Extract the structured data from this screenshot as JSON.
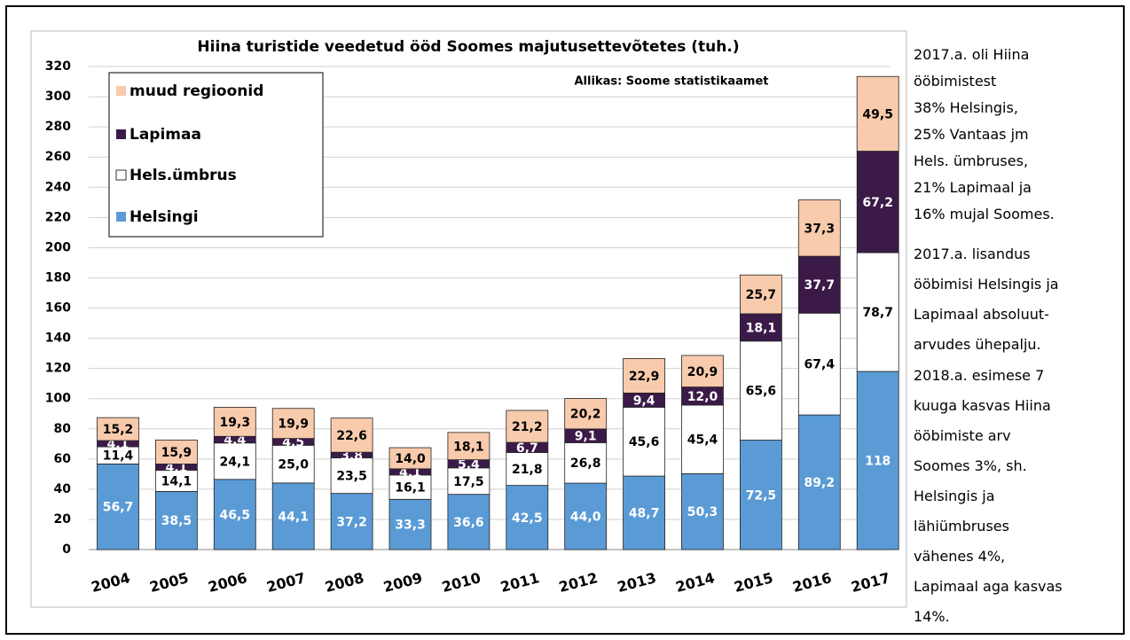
{
  "chart_data": {
    "type": "bar",
    "stacked": true,
    "title": "Hiina turistide veedetud ööd Soomes majutusettevõtetes (tuh.)",
    "annotation": "Allikas: Soome statistikaamet",
    "categories": [
      "2004",
      "2005",
      "2006",
      "2007",
      "2008",
      "2009",
      "2010",
      "2011",
      "2012",
      "2013",
      "2014",
      "2015",
      "2016",
      "2017"
    ],
    "series": [
      {
        "name": "Helsingi",
        "color": "#5b9bd5",
        "label_color": "#ffffff",
        "values": [
          56.7,
          38.5,
          46.5,
          44.1,
          37.2,
          33.3,
          36.6,
          42.5,
          44.0,
          48.7,
          50.3,
          72.5,
          89.2,
          118
        ],
        "value_labels": [
          "56,7",
          "38,5",
          "46,5",
          "44,1",
          "37,2",
          "33,3",
          "36,6",
          "42,5",
          "44,0",
          "48,7",
          "50,3",
          "72,5",
          "89,2",
          "118"
        ]
      },
      {
        "name": "Hels.ümbrus",
        "color": "#ffffff",
        "label_color": "#000000",
        "values": [
          11.4,
          14.1,
          24.1,
          25.0,
          23.5,
          16.1,
          17.5,
          21.8,
          26.8,
          45.6,
          45.4,
          65.6,
          67.4,
          78.7
        ],
        "value_labels": [
          "11,4",
          "14,1",
          "24,1",
          "25,0",
          "23,5",
          "16,1",
          "17,5",
          "21,8",
          "26,8",
          "45,6",
          "45,4",
          "65,6",
          "67,4",
          "78,7"
        ]
      },
      {
        "name": "Lapimaa",
        "color": "#3b1a48",
        "label_color": "#ffffff",
        "values": [
          4.1,
          4.1,
          4.4,
          4.5,
          3.8,
          4.1,
          5.4,
          6.7,
          9.1,
          9.4,
          12.0,
          18.1,
          37.7,
          67.2
        ],
        "value_labels": [
          "4,1",
          "4,1",
          "4,4",
          "4,5",
          "3,8",
          "4,1",
          "5,4",
          "6,7",
          "9,1",
          "9,4",
          "12,0",
          "18,1",
          "37,7",
          "67,2"
        ]
      },
      {
        "name": "muud regioonid",
        "color": "#f8cbad",
        "label_color": "#000000",
        "values": [
          15.2,
          15.9,
          19.3,
          19.9,
          22.6,
          14.0,
          18.1,
          21.2,
          20.2,
          22.9,
          20.9,
          25.7,
          37.3,
          49.5
        ],
        "value_labels": [
          "15,2",
          "15,9",
          "19,3",
          "19,9",
          "22,6",
          "14,0",
          "18,1",
          "21,2",
          "20,2",
          "22,9",
          "20,9",
          "25,7",
          "37,3",
          "49,5"
        ]
      }
    ],
    "ylim": [
      0,
      320
    ],
    "yticks": [
      0,
      20,
      40,
      60,
      80,
      100,
      120,
      140,
      160,
      180,
      200,
      220,
      240,
      260,
      280,
      300,
      320
    ],
    "grid": true,
    "legend": "upper left"
  },
  "side_text": [
    [
      "2017.a. oli Hiina",
      "ööbimistest",
      "38% Helsingis,",
      "25% Vantaas jm",
      "Hels. ümbruses,",
      "21% Lapimaal ja",
      "16% mujal Soomes."
    ],
    [
      "2017.a. lisandus",
      "ööbimisi Helsingis ja",
      "Lapimaal absoluut-",
      "arvudes ühepalju."
    ],
    [
      "2018.a. esimese 7",
      "kuuga kasvas Hiina",
      "ööbimiste arv",
      "Soomes 3%, sh.",
      "Helsingis ja",
      "lähiümbruses",
      "vähenes 4%,",
      "Lapimaal aga kasvas",
      "14%."
    ]
  ]
}
